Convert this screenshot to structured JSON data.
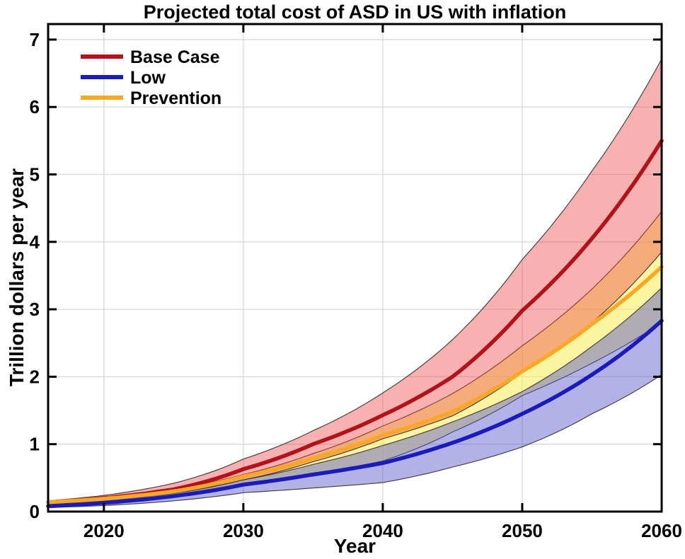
{
  "figure": {
    "background": "#ffffff"
  },
  "chart_data": {
    "type": "line",
    "title": "Projected total cost of ASD in US with inflation",
    "xlabel": "Year",
    "ylabel": "Trillion dollars per year",
    "xlim": [
      2016,
      2060
    ],
    "ylim": [
      0,
      7.23
    ],
    "x_ticks": [
      2020,
      2030,
      2040,
      2050,
      2060
    ],
    "y_ticks": [
      0,
      1,
      2,
      3,
      4,
      5,
      6,
      7
    ],
    "grid": true,
    "legend_position": "top-left",
    "axis_color": "#000000",
    "grid_color": "#d8d8d8",
    "band_edge_color": "#4a4040",
    "years": [
      2016,
      2020,
      2025,
      2030,
      2035,
      2040,
      2045,
      2050,
      2055,
      2060
    ],
    "series": [
      {
        "name": "Base Case",
        "color": "#b1121b",
        "band_fill": "#ee4444",
        "band_opacity": 0.42,
        "values": [
          0.14,
          0.2,
          0.33,
          0.63,
          1.0,
          1.43,
          2.0,
          2.98,
          4.05,
          5.5
        ],
        "upper": [
          0.16,
          0.24,
          0.42,
          0.78,
          1.2,
          1.76,
          2.55,
          3.74,
          5.05,
          6.71
        ],
        "lower": [
          0.12,
          0.17,
          0.27,
          0.47,
          0.74,
          1.08,
          1.42,
          2.06,
          2.8,
          3.85
        ]
      },
      {
        "name": "Low",
        "color": "#1b1bbd",
        "band_fill": "#5555cc",
        "band_opacity": 0.45,
        "values": [
          0.08,
          0.13,
          0.23,
          0.4,
          0.55,
          0.72,
          1.02,
          1.45,
          2.03,
          2.83
        ],
        "upper": [
          0.11,
          0.17,
          0.28,
          0.47,
          0.7,
          0.98,
          1.33,
          1.78,
          2.45,
          3.32
        ],
        "lower": [
          0.06,
          0.09,
          0.16,
          0.28,
          0.35,
          0.43,
          0.66,
          0.96,
          1.45,
          2.03
        ]
      },
      {
        "name": "Prevention",
        "color": "#f9a825",
        "band_fill": "#f9ef62",
        "band_opacity": 0.6,
        "values": [
          0.14,
          0.19,
          0.3,
          0.52,
          0.79,
          1.13,
          1.48,
          2.08,
          2.78,
          3.63
        ],
        "upper": [
          0.16,
          0.22,
          0.33,
          0.55,
          0.86,
          1.27,
          1.75,
          2.46,
          3.3,
          4.45
        ],
        "lower": [
          0.12,
          0.16,
          0.25,
          0.4,
          0.56,
          0.75,
          1.18,
          1.72,
          2.2,
          2.8
        ]
      }
    ],
    "band_draw_order": [
      "Prevention",
      "Low",
      "Base Case"
    ],
    "line_draw_order": [
      "Base Case",
      "Low",
      "Prevention"
    ],
    "legend_order": [
      "Base Case",
      "Low",
      "Prevention"
    ]
  }
}
